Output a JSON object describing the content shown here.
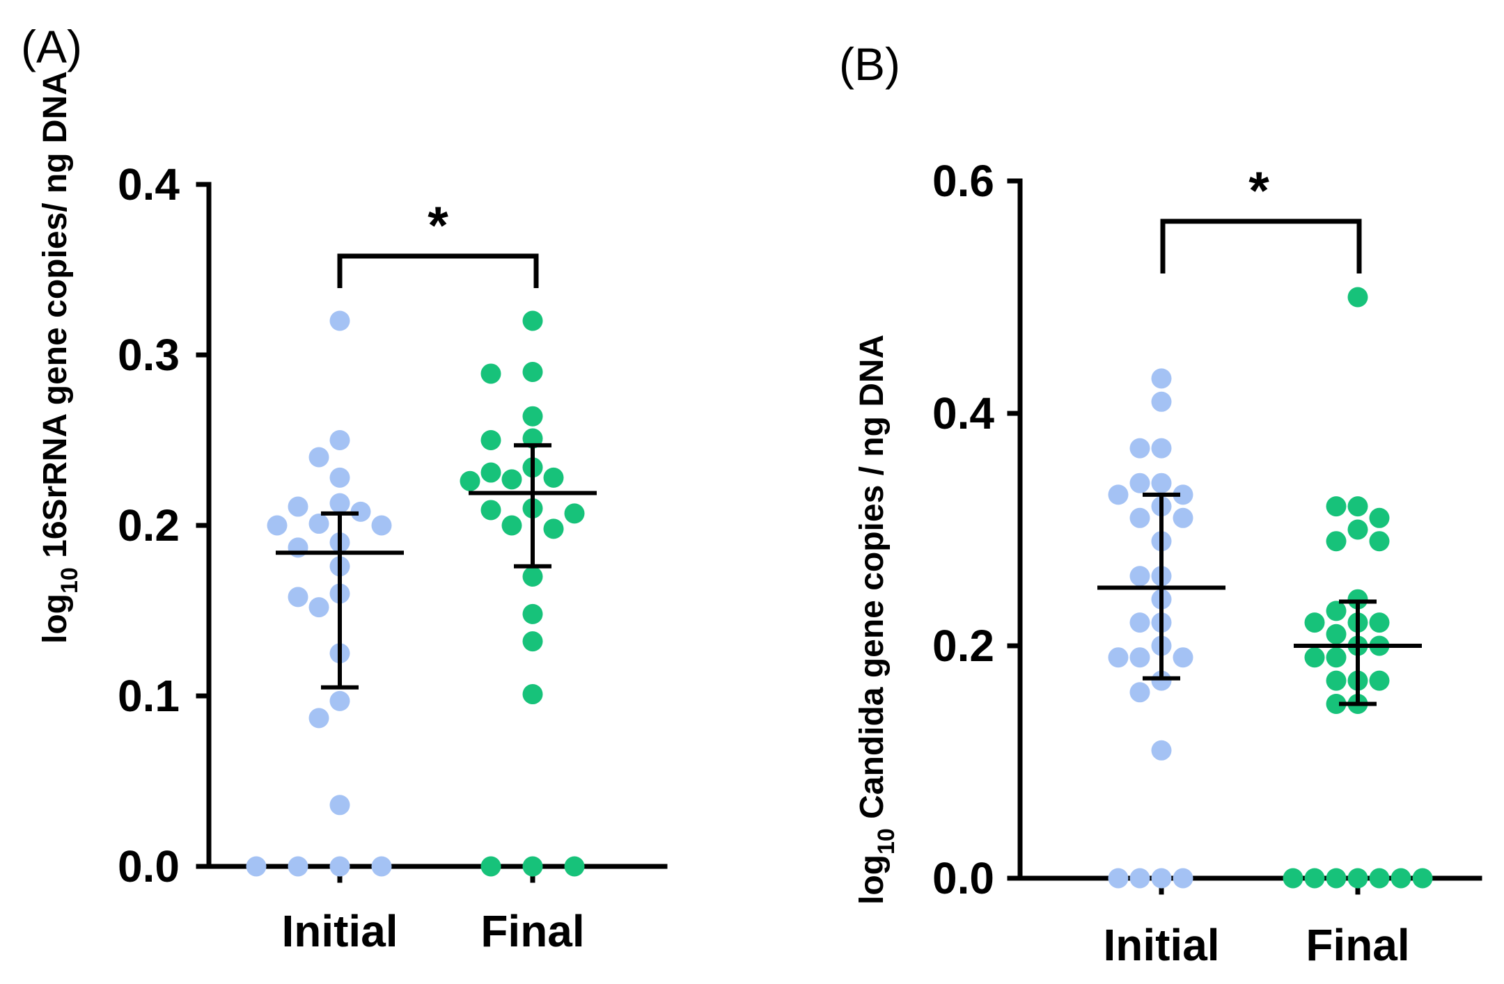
{
  "chart_data": [
    {
      "type": "scatter",
      "panel_label": "(A)",
      "ylabel_prefix": "log",
      "ylabel_sub": "10",
      "ylabel_main": " 16SrRNA gene copies/ ng DNA",
      "ylim": [
        0,
        0.4
      ],
      "yticks": [
        "0.0",
        "0.1",
        "0.2",
        "0.3",
        "0.4"
      ],
      "categories": [
        "Initial",
        "Final"
      ],
      "significance": "*",
      "series": [
        {
          "name": "Initial",
          "color": "#a4c2f4",
          "values": [
            0.32,
            0.25,
            0.24,
            0.228,
            0.213,
            0.211,
            0.208,
            0.201,
            0.2,
            0.2,
            0.19,
            0.187,
            0.176,
            0.16,
            0.158,
            0.152,
            0.125,
            0.097,
            0.087,
            0.036,
            0.0,
            0.0,
            0.0,
            0.0
          ],
          "median": 0.184,
          "q1": 0.105,
          "q3": 0.207
        },
        {
          "name": "Final",
          "color": "#17c27a",
          "values": [
            0.32,
            0.29,
            0.289,
            0.264,
            0.251,
            0.25,
            0.234,
            0.231,
            0.228,
            0.227,
            0.226,
            0.21,
            0.209,
            0.207,
            0.2,
            0.198,
            0.17,
            0.148,
            0.132,
            0.101,
            0.0,
            0.0,
            0.0
          ],
          "median": 0.219,
          "q1": 0.176,
          "q3": 0.247
        }
      ]
    },
    {
      "type": "scatter",
      "panel_label": "(B)",
      "ylabel_prefix": "log",
      "ylabel_sub": "10",
      "ylabel_main": "  Candida gene copies / ng DNA",
      "ylim": [
        0,
        0.6
      ],
      "yticks": [
        "0.0",
        "0.2",
        "0.4",
        "0.6"
      ],
      "categories": [
        "Initial",
        "Final"
      ],
      "significance": "*",
      "series": [
        {
          "name": "Initial",
          "color": "#a4c2f4",
          "values": [
            0.43,
            0.41,
            0.37,
            0.37,
            0.34,
            0.34,
            0.33,
            0.33,
            0.32,
            0.31,
            0.31,
            0.29,
            0.26,
            0.26,
            0.24,
            0.22,
            0.22,
            0.2,
            0.19,
            0.19,
            0.19,
            0.17,
            0.16,
            0.11,
            0.0,
            0.0,
            0.0,
            0.0
          ],
          "median": 0.25,
          "q1": 0.172,
          "q3": 0.33
        },
        {
          "name": "Final",
          "color": "#17c27a",
          "values": [
            0.5,
            0.32,
            0.32,
            0.31,
            0.3,
            0.29,
            0.29,
            0.24,
            0.23,
            0.22,
            0.22,
            0.22,
            0.21,
            0.2,
            0.2,
            0.19,
            0.19,
            0.17,
            0.17,
            0.17,
            0.15,
            0.15,
            0.0,
            0.0,
            0.0,
            0.0,
            0.0,
            0.0,
            0.0
          ],
          "median": 0.2,
          "q1": 0.15,
          "q3": 0.238
        }
      ]
    }
  ]
}
